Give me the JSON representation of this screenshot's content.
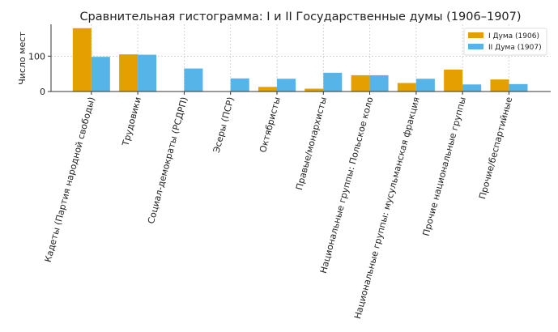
{
  "chart_data": {
    "type": "bar",
    "title": "Сравнительная гистограмма: I и II Государственные думы (1906–1907)",
    "xlabel": "",
    "ylabel": "Число мест",
    "ylim": [
      0,
      190
    ],
    "yticks": [
      0,
      100
    ],
    "grid": true,
    "legend_position": "top-right",
    "categories": [
      "Кадеты (Партия народной свободы)",
      "Трудовики",
      "Социал-демократы (РСДРП)",
      "Эсеры (ПСР)",
      "Октябристы",
      "Правые/монархисты",
      "Национальные группы: Польское коло",
      "Национальные группы: мусульманская фракция",
      "Прочие национальные группы",
      "Прочие/беспартийные"
    ],
    "series": [
      {
        "name": "I Дума (1906)",
        "color": "#E69F00",
        "values": [
          179,
          105,
          0,
          0,
          13,
          8,
          46,
          24,
          62,
          34
        ]
      },
      {
        "name": "II Дума (1907)",
        "color": "#56B4E9",
        "values": [
          98,
          104,
          65,
          37,
          36,
          53,
          46,
          36,
          20,
          21
        ]
      }
    ]
  }
}
